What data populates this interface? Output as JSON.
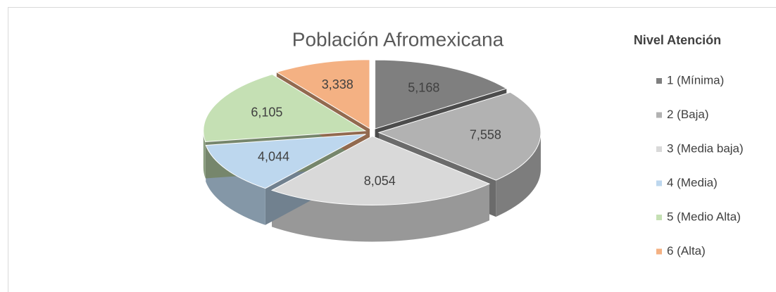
{
  "chart_data": {
    "type": "pie",
    "title": "Población Afromexicana",
    "categories": [
      "1 (Mínima)",
      "2 (Baja)",
      "3 (Media baja)",
      "4 (Media)",
      "5 (Medio Alta)",
      "6 (Alta)"
    ],
    "values": [
      5168,
      7558,
      8054,
      4044,
      6105,
      3338
    ],
    "value_labels": [
      "5,168",
      "7,558",
      "8,054",
      "4,044",
      "6,105",
      "3,338"
    ],
    "colors": [
      "#7f7f7f",
      "#b2b2b2",
      "#d9d9d9",
      "#bdd7ee",
      "#c5e0b4",
      "#f4b183"
    ],
    "legend_title": "Nivel Atención",
    "legend": "right"
  }
}
